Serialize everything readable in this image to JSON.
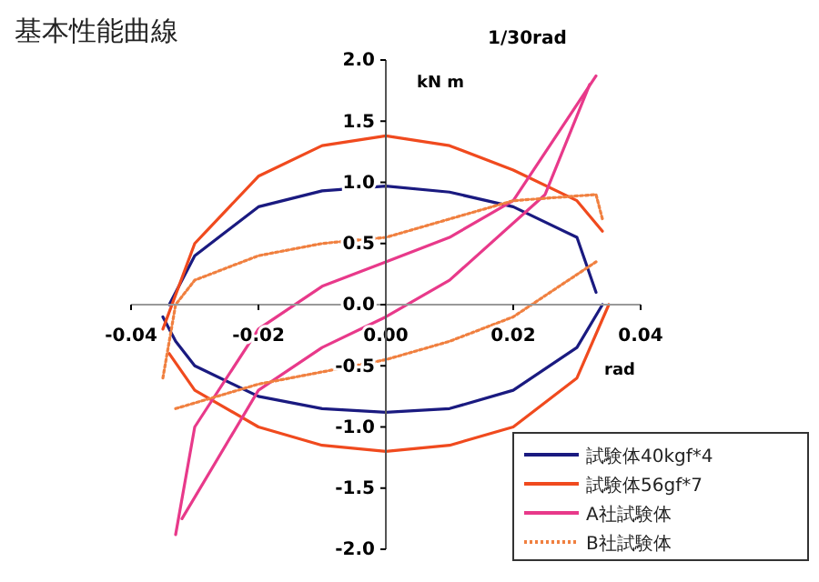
{
  "chart_data": {
    "type": "line",
    "title": "基本性能曲線",
    "xlabel": "rad",
    "ylabel": "kN m",
    "annotations": [
      "1/30rad"
    ],
    "xlim": [
      -0.04,
      0.04
    ],
    "ylim": [
      -2,
      2
    ],
    "xticks": [
      {
        "value": -0.04,
        "label": "-0.04"
      },
      {
        "value": -0.02,
        "label": "-0.02"
      },
      {
        "value": 0,
        "label": "0.00"
      },
      {
        "value": 0.02,
        "label": "0.02"
      },
      {
        "value": 0.04,
        "label": "0.04"
      }
    ],
    "yticks": [
      {
        "value": -2,
        "label": "-2.0"
      },
      {
        "value": -1.5,
        "label": "-1.5"
      },
      {
        "value": -1,
        "label": "-1.0"
      },
      {
        "value": -0.5,
        "label": "-0.5"
      },
      {
        "value": 0,
        "label": "0.0"
      },
      {
        "value": 0.5,
        "label": "0.5"
      },
      {
        "value": 1,
        "label": "1.0"
      },
      {
        "value": 1.5,
        "label": "1.5"
      },
      {
        "value": 2,
        "label": "2.0"
      }
    ],
    "grid": false,
    "legend": "bottom right",
    "marker": "none",
    "series": [
      {
        "name": "試験体40kgf*4",
        "color": "#1a1a80",
        "line_style": "solid",
        "x": [
          -0.034,
          -0.03,
          -0.02,
          -0.01,
          0,
          0.01,
          0.02,
          0.03,
          0.033
        ],
        "values": [
          0,
          0.4,
          0.8,
          0.93,
          0.97,
          0.92,
          0.8,
          0.55,
          0.1
        ]
      },
      {
        "color": "#1a1a80",
        "line_style": "solid",
        "x": [
          -0.035,
          -0.033,
          -0.03,
          -0.02,
          -0.01,
          0,
          0.01,
          0.02,
          0.03,
          0.034
        ],
        "values": [
          -0.1,
          -0.3,
          -0.5,
          -0.75,
          -0.85,
          -0.88,
          -0.85,
          -0.7,
          -0.35,
          0
        ]
      },
      {
        "name": "試験体56gf*7",
        "color": "#f04a1e",
        "line_style": "solid",
        "x": [
          -0.035,
          -0.03,
          -0.02,
          -0.01,
          0,
          0.01,
          0.02,
          0.03,
          0.034
        ],
        "values": [
          -0.2,
          0.5,
          1.05,
          1.3,
          1.38,
          1.3,
          1.1,
          0.85,
          0.6
        ]
      },
      {
        "color": "#f04a1e",
        "line_style": "solid",
        "x": [
          -0.034,
          -0.03,
          -0.02,
          -0.01,
          0,
          0.01,
          0.02,
          0.03,
          0.035
        ],
        "values": [
          -0.4,
          -0.7,
          -1,
          -1.15,
          -1.2,
          -1.15,
          -1,
          -0.6,
          0
        ]
      },
      {
        "name": "A社試験体",
        "color": "#e8398a",
        "line_style": "solid",
        "x": [
          -0.033,
          -0.03,
          -0.02,
          -0.01,
          0,
          0.01,
          0.02,
          0.033
        ],
        "values": [
          -1.88,
          -1,
          -0.2,
          0.15,
          0.35,
          0.55,
          0.85,
          1.87
        ]
      },
      {
        "color": "#e8398a",
        "line_style": "solid",
        "x": [
          -0.032,
          -0.02,
          -0.01,
          0,
          0.01,
          0.025,
          0.032
        ],
        "values": [
          -1.75,
          -0.7,
          -0.35,
          -0.1,
          0.2,
          0.9,
          1.8
        ]
      },
      {
        "name": "B社試験体",
        "color": "#f08040",
        "line_style": "dotted",
        "x": [
          -0.035,
          -0.033,
          -0.03,
          -0.02,
          -0.01,
          0,
          0.01,
          0.02,
          0.033,
          0.034
        ],
        "values": [
          -0.6,
          0,
          0.2,
          0.4,
          0.5,
          0.55,
          0.7,
          0.85,
          0.9,
          0.7
        ]
      },
      {
        "color": "#f08040",
        "line_style": "dotted",
        "x": [
          -0.033,
          -0.02,
          -0.01,
          0,
          0.01,
          0.02,
          0.033
        ],
        "values": [
          -0.85,
          -0.65,
          -0.55,
          -0.45,
          -0.3,
          -0.1,
          0.35
        ]
      }
    ]
  }
}
